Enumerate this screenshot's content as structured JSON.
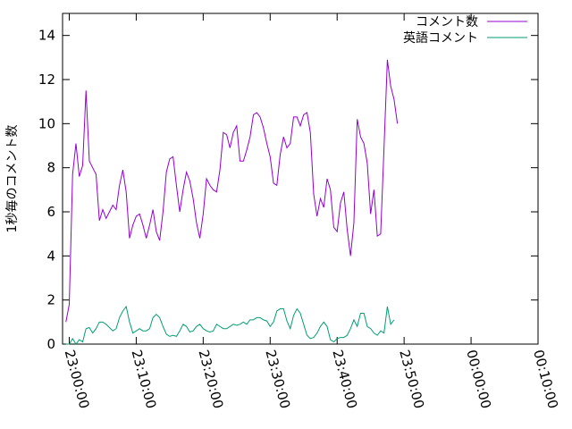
{
  "chart_data": {
    "type": "line",
    "ylabel": "1秒毎のコメント数",
    "ylim": [
      0,
      15
    ],
    "yticks": [
      0,
      2,
      4,
      6,
      8,
      10,
      12,
      14
    ],
    "xlim": [
      "22:59:00",
      "00:10:00"
    ],
    "xticks": [
      "23:00:00",
      "23:10:00",
      "23:20:00",
      "23:30:00",
      "23:40:00",
      "23:50:00",
      "00:00:00",
      "00:10:00"
    ],
    "legend_position": "top-right",
    "grid": false,
    "series": [
      {
        "name": "コメント数",
        "color": "#9400d3",
        "points": [
          [
            "22:59:30",
            1.0
          ],
          [
            "23:00:00",
            1.8
          ],
          [
            "23:00:30",
            7.7
          ],
          [
            "23:01:00",
            9.1
          ],
          [
            "23:01:30",
            7.6
          ],
          [
            "23:02:00",
            8.1
          ],
          [
            "23:02:30",
            11.5
          ],
          [
            "23:03:00",
            8.3
          ],
          [
            "23:03:30",
            8.0
          ],
          [
            "23:04:00",
            7.7
          ],
          [
            "23:04:30",
            5.6
          ],
          [
            "23:05:00",
            6.1
          ],
          [
            "23:05:30",
            5.7
          ],
          [
            "23:06:00",
            6.0
          ],
          [
            "23:06:30",
            6.3
          ],
          [
            "23:07:00",
            6.1
          ],
          [
            "23:07:30",
            7.2
          ],
          [
            "23:08:00",
            7.9
          ],
          [
            "23:08:30",
            6.9
          ],
          [
            "23:09:00",
            4.8
          ],
          [
            "23:09:30",
            5.4
          ],
          [
            "23:10:00",
            5.8
          ],
          [
            "23:10:30",
            5.9
          ],
          [
            "23:11:00",
            5.4
          ],
          [
            "23:11:30",
            4.8
          ],
          [
            "23:12:00",
            5.4
          ],
          [
            "23:12:30",
            6.1
          ],
          [
            "23:13:00",
            5.1
          ],
          [
            "23:13:30",
            4.7
          ],
          [
            "23:14:00",
            6.0
          ],
          [
            "23:14:30",
            7.8
          ],
          [
            "23:15:00",
            8.4
          ],
          [
            "23:15:30",
            8.5
          ],
          [
            "23:16:00",
            7.2
          ],
          [
            "23:16:30",
            6.0
          ],
          [
            "23:17:00",
            7.0
          ],
          [
            "23:17:30",
            7.8
          ],
          [
            "23:18:00",
            7.4
          ],
          [
            "23:18:30",
            6.6
          ],
          [
            "23:19:00",
            5.5
          ],
          [
            "23:19:30",
            4.8
          ],
          [
            "23:20:00",
            5.9
          ],
          [
            "23:20:30",
            7.5
          ],
          [
            "23:21:00",
            7.2
          ],
          [
            "23:21:30",
            7.0
          ],
          [
            "23:22:00",
            6.9
          ],
          [
            "23:22:30",
            7.9
          ],
          [
            "23:23:00",
            9.6
          ],
          [
            "23:23:30",
            9.5
          ],
          [
            "23:24:00",
            8.9
          ],
          [
            "23:24:30",
            9.6
          ],
          [
            "23:25:00",
            9.9
          ],
          [
            "23:25:30",
            8.3
          ],
          [
            "23:26:00",
            8.3
          ],
          [
            "23:26:30",
            8.8
          ],
          [
            "23:27:00",
            9.4
          ],
          [
            "23:27:30",
            10.4
          ],
          [
            "23:28:00",
            10.5
          ],
          [
            "23:28:30",
            10.3
          ],
          [
            "23:29:00",
            9.8
          ],
          [
            "23:29:30",
            9.1
          ],
          [
            "23:30:00",
            8.5
          ],
          [
            "23:30:30",
            7.3
          ],
          [
            "23:31:00",
            7.2
          ],
          [
            "23:31:30",
            8.6
          ],
          [
            "23:32:00",
            9.4
          ],
          [
            "23:32:30",
            8.9
          ],
          [
            "23:33:00",
            9.1
          ],
          [
            "23:33:30",
            10.3
          ],
          [
            "23:34:00",
            10.3
          ],
          [
            "23:34:30",
            9.9
          ],
          [
            "23:35:00",
            10.4
          ],
          [
            "23:35:30",
            10.5
          ],
          [
            "23:36:00",
            9.6
          ],
          [
            "23:36:30",
            6.8
          ],
          [
            "23:37:00",
            5.8
          ],
          [
            "23:37:30",
            6.6
          ],
          [
            "23:38:00",
            6.2
          ],
          [
            "23:38:30",
            7.5
          ],
          [
            "23:39:00",
            7.0
          ],
          [
            "23:39:30",
            5.3
          ],
          [
            "23:40:00",
            5.1
          ],
          [
            "23:40:30",
            6.4
          ],
          [
            "23:41:00",
            6.9
          ],
          [
            "23:41:30",
            5.2
          ],
          [
            "23:42:00",
            4.0
          ],
          [
            "23:42:30",
            5.5
          ],
          [
            "23:43:00",
            10.2
          ],
          [
            "23:43:30",
            9.4
          ],
          [
            "23:44:00",
            9.1
          ],
          [
            "23:44:30",
            8.2
          ],
          [
            "23:45:00",
            5.9
          ],
          [
            "23:45:30",
            7.0
          ],
          [
            "23:46:00",
            4.9
          ],
          [
            "23:46:30",
            5.0
          ],
          [
            "23:47:00",
            8.9
          ],
          [
            "23:47:30",
            12.9
          ],
          [
            "23:48:00",
            11.7
          ],
          [
            "23:48:30",
            11.1
          ],
          [
            "23:49:00",
            10.0
          ]
        ]
      },
      {
        "name": "英語コメント",
        "color": "#009e73",
        "points": [
          [
            "22:59:30",
            0.0
          ],
          [
            "23:00:00",
            0.0
          ],
          [
            "23:00:30",
            0.25
          ],
          [
            "23:01:00",
            0.0
          ],
          [
            "23:01:30",
            0.2
          ],
          [
            "23:02:00",
            0.1
          ],
          [
            "23:02:30",
            0.7
          ],
          [
            "23:03:00",
            0.75
          ],
          [
            "23:03:30",
            0.5
          ],
          [
            "23:04:00",
            0.7
          ],
          [
            "23:04:30",
            1.0
          ],
          [
            "23:05:00",
            1.0
          ],
          [
            "23:05:30",
            0.9
          ],
          [
            "23:06:00",
            0.75
          ],
          [
            "23:06:30",
            0.6
          ],
          [
            "23:07:00",
            0.7
          ],
          [
            "23:07:30",
            1.2
          ],
          [
            "23:08:00",
            1.5
          ],
          [
            "23:08:30",
            1.7
          ],
          [
            "23:09:00",
            1.0
          ],
          [
            "23:09:30",
            0.5
          ],
          [
            "23:10:00",
            0.6
          ],
          [
            "23:10:30",
            0.7
          ],
          [
            "23:11:00",
            0.6
          ],
          [
            "23:11:30",
            0.6
          ],
          [
            "23:12:00",
            0.7
          ],
          [
            "23:12:30",
            1.2
          ],
          [
            "23:13:00",
            1.35
          ],
          [
            "23:13:30",
            1.2
          ],
          [
            "23:14:00",
            0.8
          ],
          [
            "23:14:30",
            0.45
          ],
          [
            "23:15:00",
            0.35
          ],
          [
            "23:15:30",
            0.4
          ],
          [
            "23:16:00",
            0.35
          ],
          [
            "23:16:30",
            0.6
          ],
          [
            "23:17:00",
            0.9
          ],
          [
            "23:17:30",
            0.8
          ],
          [
            "23:18:00",
            0.55
          ],
          [
            "23:18:30",
            0.6
          ],
          [
            "23:19:00",
            0.8
          ],
          [
            "23:19:30",
            0.9
          ],
          [
            "23:20:00",
            0.7
          ],
          [
            "23:20:30",
            0.6
          ],
          [
            "23:21:00",
            0.55
          ],
          [
            "23:21:30",
            0.6
          ],
          [
            "23:22:00",
            0.9
          ],
          [
            "23:22:30",
            0.8
          ],
          [
            "23:23:00",
            0.7
          ],
          [
            "23:23:30",
            0.7
          ],
          [
            "23:24:00",
            0.8
          ],
          [
            "23:24:30",
            0.9
          ],
          [
            "23:25:00",
            0.85
          ],
          [
            "23:25:30",
            0.9
          ],
          [
            "23:26:00",
            1.0
          ],
          [
            "23:26:30",
            0.9
          ],
          [
            "23:27:00",
            1.1
          ],
          [
            "23:27:30",
            1.1
          ],
          [
            "23:28:00",
            1.2
          ],
          [
            "23:28:30",
            1.2
          ],
          [
            "23:29:00",
            1.1
          ],
          [
            "23:29:30",
            1.05
          ],
          [
            "23:30:00",
            0.8
          ],
          [
            "23:30:30",
            1.0
          ],
          [
            "23:31:00",
            1.5
          ],
          [
            "23:31:30",
            1.6
          ],
          [
            "23:32:00",
            1.6
          ],
          [
            "23:32:30",
            1.05
          ],
          [
            "23:33:00",
            0.7
          ],
          [
            "23:33:30",
            1.3
          ],
          [
            "23:34:00",
            1.6
          ],
          [
            "23:34:30",
            1.4
          ],
          [
            "23:35:00",
            0.9
          ],
          [
            "23:35:30",
            0.4
          ],
          [
            "23:36:00",
            0.25
          ],
          [
            "23:36:30",
            0.3
          ],
          [
            "23:37:00",
            0.5
          ],
          [
            "23:37:30",
            0.8
          ],
          [
            "23:38:00",
            1.0
          ],
          [
            "23:38:30",
            0.8
          ],
          [
            "23:39:00",
            0.2
          ],
          [
            "23:39:30",
            0.1
          ],
          [
            "23:40:00",
            0.25
          ],
          [
            "23:40:30",
            0.3
          ],
          [
            "23:41:00",
            0.3
          ],
          [
            "23:41:30",
            0.4
          ],
          [
            "23:42:00",
            0.7
          ],
          [
            "23:42:30",
            1.1
          ],
          [
            "23:43:00",
            0.8
          ],
          [
            "23:43:30",
            1.4
          ],
          [
            "23:44:00",
            1.4
          ],
          [
            "23:44:30",
            0.8
          ],
          [
            "23:45:00",
            0.7
          ],
          [
            "23:45:30",
            0.5
          ],
          [
            "23:46:00",
            0.4
          ],
          [
            "23:46:30",
            0.6
          ],
          [
            "23:47:00",
            0.5
          ],
          [
            "23:47:30",
            1.7
          ],
          [
            "23:48:00",
            0.9
          ],
          [
            "23:48:30",
            1.1
          ]
        ]
      }
    ]
  }
}
